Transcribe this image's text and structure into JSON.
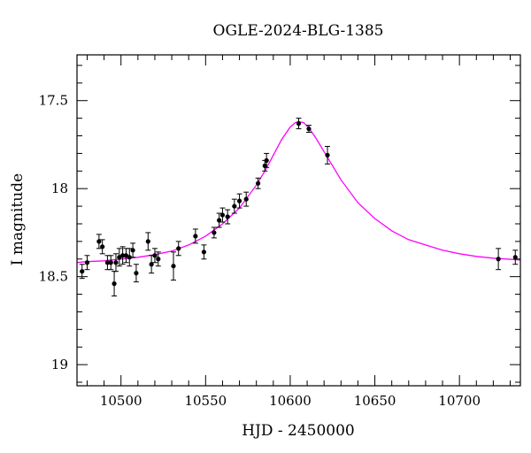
{
  "chart_data": {
    "type": "scatter",
    "title": "OGLE-2024-BLG-1385",
    "xlabel": "HJD - 2450000",
    "ylabel": "I magnitude",
    "xlim": [
      10474,
      10736
    ],
    "ylim": [
      19.12,
      17.24
    ],
    "y_inverted": true,
    "x_ticks": [
      10500,
      10550,
      10600,
      10650,
      10700
    ],
    "y_ticks": [
      17.5,
      18,
      18.5,
      19
    ],
    "y_tick_labels": [
      "17.5",
      "18",
      "18.5",
      "19"
    ],
    "x_minor_step": 10,
    "y_minor_step": 0.1,
    "grid": false,
    "colors": {
      "model": "#ff00ff",
      "points": "#000000",
      "axes": "#000000"
    },
    "points": [
      {
        "x": 10477,
        "y": 18.47,
        "err": 0.04
      },
      {
        "x": 10480,
        "y": 18.42,
        "err": 0.04
      },
      {
        "x": 10487,
        "y": 18.3,
        "err": 0.04
      },
      {
        "x": 10489,
        "y": 18.33,
        "err": 0.04
      },
      {
        "x": 10492,
        "y": 18.42,
        "err": 0.04
      },
      {
        "x": 10494,
        "y": 18.42,
        "err": 0.04
      },
      {
        "x": 10496,
        "y": 18.54,
        "err": 0.07
      },
      {
        "x": 10497,
        "y": 18.42,
        "err": 0.05
      },
      {
        "x": 10499,
        "y": 18.39,
        "err": 0.05
      },
      {
        "x": 10501,
        "y": 18.38,
        "err": 0.05
      },
      {
        "x": 10503,
        "y": 18.38,
        "err": 0.04
      },
      {
        "x": 10505,
        "y": 18.39,
        "err": 0.05
      },
      {
        "x": 10507,
        "y": 18.35,
        "err": 0.04
      },
      {
        "x": 10509,
        "y": 18.48,
        "err": 0.05
      },
      {
        "x": 10516,
        "y": 18.3,
        "err": 0.05
      },
      {
        "x": 10518,
        "y": 18.43,
        "err": 0.05
      },
      {
        "x": 10520,
        "y": 18.38,
        "err": 0.04
      },
      {
        "x": 10522,
        "y": 18.4,
        "err": 0.04
      },
      {
        "x": 10531,
        "y": 18.44,
        "err": 0.08
      },
      {
        "x": 10534,
        "y": 18.34,
        "err": 0.04
      },
      {
        "x": 10544,
        "y": 18.27,
        "err": 0.04
      },
      {
        "x": 10549,
        "y": 18.36,
        "err": 0.04
      },
      {
        "x": 10555,
        "y": 18.25,
        "err": 0.03
      },
      {
        "x": 10558,
        "y": 18.18,
        "err": 0.04
      },
      {
        "x": 10560,
        "y": 18.15,
        "err": 0.04
      },
      {
        "x": 10563,
        "y": 18.16,
        "err": 0.04
      },
      {
        "x": 10567,
        "y": 18.1,
        "err": 0.04
      },
      {
        "x": 10570,
        "y": 18.07,
        "err": 0.04
      },
      {
        "x": 10574,
        "y": 18.06,
        "err": 0.04
      },
      {
        "x": 10581,
        "y": 17.97,
        "err": 0.03
      },
      {
        "x": 10585,
        "y": 17.87,
        "err": 0.03
      },
      {
        "x": 10586,
        "y": 17.84,
        "err": 0.04
      },
      {
        "x": 10605,
        "y": 17.63,
        "err": 0.03
      },
      {
        "x": 10611,
        "y": 17.66,
        "err": 0.02
      },
      {
        "x": 10622,
        "y": 17.81,
        "err": 0.05
      },
      {
        "x": 10723,
        "y": 18.4,
        "err": 0.06
      },
      {
        "x": 10733,
        "y": 18.39,
        "err": 0.04
      }
    ],
    "model_curve": [
      {
        "x": 10474,
        "y": 18.42
      },
      {
        "x": 10480,
        "y": 18.415
      },
      {
        "x": 10490,
        "y": 18.41
      },
      {
        "x": 10500,
        "y": 18.4
      },
      {
        "x": 10510,
        "y": 18.39
      },
      {
        "x": 10520,
        "y": 18.375
      },
      {
        "x": 10530,
        "y": 18.355
      },
      {
        "x": 10540,
        "y": 18.32
      },
      {
        "x": 10550,
        "y": 18.27
      },
      {
        "x": 10560,
        "y": 18.2
      },
      {
        "x": 10570,
        "y": 18.11
      },
      {
        "x": 10580,
        "y": 17.98
      },
      {
        "x": 10585,
        "y": 17.9
      },
      {
        "x": 10590,
        "y": 17.81
      },
      {
        "x": 10595,
        "y": 17.72
      },
      {
        "x": 10600,
        "y": 17.65
      },
      {
        "x": 10603,
        "y": 17.625
      },
      {
        "x": 10605,
        "y": 17.62
      },
      {
        "x": 10608,
        "y": 17.625
      },
      {
        "x": 10611,
        "y": 17.655
      },
      {
        "x": 10615,
        "y": 17.71
      },
      {
        "x": 10620,
        "y": 17.79
      },
      {
        "x": 10625,
        "y": 17.87
      },
      {
        "x": 10630,
        "y": 17.95
      },
      {
        "x": 10640,
        "y": 18.08
      },
      {
        "x": 10650,
        "y": 18.17
      },
      {
        "x": 10660,
        "y": 18.24
      },
      {
        "x": 10670,
        "y": 18.29
      },
      {
        "x": 10680,
        "y": 18.32
      },
      {
        "x": 10690,
        "y": 18.35
      },
      {
        "x": 10700,
        "y": 18.37
      },
      {
        "x": 10710,
        "y": 18.385
      },
      {
        "x": 10720,
        "y": 18.395
      },
      {
        "x": 10736,
        "y": 18.405
      }
    ]
  }
}
